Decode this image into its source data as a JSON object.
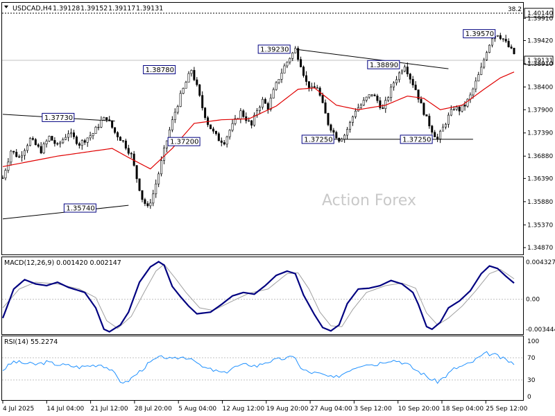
{
  "chart_data": {
    "type": "candlestick",
    "symbol_header": "USDCAD,H4",
    "ohlc": {
      "open": "1.39128",
      "high": "1.39152",
      "low": "1.39117",
      "close": "1.39131"
    },
    "current_price_label": "1.39131",
    "watermark": "Action Forex",
    "fib_level": {
      "label": "38.2",
      "price_label": "1.40140",
      "value": 1.4014
    },
    "price_axis": {
      "ticks": [
        "1.39910",
        "1.39420",
        "1.38910",
        "1.38400",
        "1.37900",
        "1.37390",
        "1.36880",
        "1.36390",
        "1.35880",
        "1.35370",
        "1.34870"
      ],
      "ylim": [
        1.3472,
        1.4025
      ]
    },
    "time_axis": [
      "4 Jul 2025",
      "14 Jul 04:00",
      "21 Jul 12:00",
      "28 Jul 20:00",
      "5 Aug 04:00",
      "12 Aug 12:00",
      "19 Aug 20:00",
      "27 Aug 04:00",
      "3 Sep 12:00",
      "10 Sep 20:00",
      "18 Sep 04:00",
      "25 Sep 12:00"
    ],
    "close_path": [
      [
        0,
        1.364
      ],
      [
        3,
        1.37
      ],
      [
        6,
        1.3685
      ],
      [
        10,
        1.3725
      ],
      [
        14,
        1.37
      ],
      [
        17,
        1.373
      ],
      [
        20,
        1.371
      ],
      [
        24,
        1.374
      ],
      [
        28,
        1.3715
      ],
      [
        33,
        1.3738
      ],
      [
        36,
        1.3765
      ],
      [
        38,
        1.3773
      ],
      [
        41,
        1.374
      ],
      [
        44,
        1.372
      ],
      [
        47,
        1.369
      ],
      [
        49,
        1.364
      ],
      [
        51,
        1.3595
      ],
      [
        53,
        1.3574
      ],
      [
        55,
        1.3605
      ],
      [
        57,
        1.365
      ],
      [
        59,
        1.37
      ],
      [
        61,
        1.3745
      ],
      [
        63,
        1.3785
      ],
      [
        65,
        1.382
      ],
      [
        67,
        1.385
      ],
      [
        69,
        1.3878
      ],
      [
        71,
        1.384
      ],
      [
        73,
        1.3795
      ],
      [
        75,
        1.376
      ],
      [
        77,
        1.374
      ],
      [
        79,
        1.3725
      ],
      [
        81,
        1.372
      ],
      [
        83,
        1.3745
      ],
      [
        85,
        1.3765
      ],
      [
        87,
        1.3785
      ],
      [
        89,
        1.377
      ],
      [
        91,
        1.3755
      ],
      [
        93,
        1.379
      ],
      [
        95,
        1.381
      ],
      [
        97,
        1.3795
      ],
      [
        99,
        1.383
      ],
      [
        101,
        1.386
      ],
      [
        103,
        1.3885
      ],
      [
        105,
        1.3905
      ],
      [
        107,
        1.3923
      ],
      [
        109,
        1.389
      ],
      [
        111,
        1.385
      ],
      [
        113,
        1.3835
      ],
      [
        115,
        1.384
      ],
      [
        117,
        1.38
      ],
      [
        119,
        1.376
      ],
      [
        121,
        1.374
      ],
      [
        123,
        1.3725
      ],
      [
        125,
        1.3735
      ],
      [
        127,
        1.376
      ],
      [
        129,
        1.379
      ],
      [
        131,
        1.38
      ],
      [
        133,
        1.3815
      ],
      [
        135,
        1.3825
      ],
      [
        137,
        1.381
      ],
      [
        139,
        1.379
      ],
      [
        141,
        1.382
      ],
      [
        143,
        1.385
      ],
      [
        145,
        1.387
      ],
      [
        147,
        1.3889
      ],
      [
        149,
        1.386
      ],
      [
        151,
        1.3835
      ],
      [
        153,
        1.38
      ],
      [
        155,
        1.377
      ],
      [
        157,
        1.3745
      ],
      [
        159,
        1.3725
      ],
      [
        161,
        1.375
      ],
      [
        163,
        1.3775
      ],
      [
        165,
        1.3795
      ],
      [
        167,
        1.379
      ],
      [
        169,
        1.38
      ],
      [
        171,
        1.382
      ],
      [
        173,
        1.385
      ],
      [
        175,
        1.388
      ],
      [
        177,
        1.392
      ],
      [
        179,
        1.395
      ],
      [
        181,
        1.3957
      ],
      [
        183,
        1.3945
      ],
      [
        185,
        1.3928
      ],
      [
        187,
        1.3913
      ]
    ],
    "moving_average": {
      "color": "#e00000",
      "points": [
        [
          0,
          1.3665
        ],
        [
          20,
          1.3688
        ],
        [
          40,
          1.3705
        ],
        [
          46,
          1.3685
        ],
        [
          54,
          1.366
        ],
        [
          62,
          1.3705
        ],
        [
          70,
          1.376
        ],
        [
          80,
          1.3768
        ],
        [
          90,
          1.377
        ],
        [
          100,
          1.3798
        ],
        [
          108,
          1.3835
        ],
        [
          114,
          1.3838
        ],
        [
          122,
          1.38
        ],
        [
          130,
          1.379
        ],
        [
          140,
          1.38
        ],
        [
          148,
          1.382
        ],
        [
          154,
          1.3815
        ],
        [
          160,
          1.379
        ],
        [
          168,
          1.38
        ],
        [
          176,
          1.3835
        ],
        [
          182,
          1.386
        ],
        [
          187,
          1.3873
        ]
      ]
    },
    "annotations": [
      {
        "label": "1.37730",
        "bar": 20,
        "price": 1.3773
      },
      {
        "label": "1.35740",
        "bar": 28,
        "price": 1.3574
      },
      {
        "label": "1.38780",
        "bar": 57,
        "price": 1.3878
      },
      {
        "label": "1.37200",
        "bar": 66,
        "price": 1.372
      },
      {
        "label": "1.39230",
        "bar": 99,
        "price": 1.3923
      },
      {
        "label": "1.37250",
        "bar": 115,
        "price": 1.3725
      },
      {
        "label": "1.38890",
        "bar": 139,
        "price": 1.3889
      },
      {
        "label": "1.37250",
        "bar": 151,
        "price": 1.3725
      },
      {
        "label": "1.39570",
        "bar": 174,
        "price": 1.3957
      }
    ],
    "trendlines": [
      {
        "from": [
          0,
          1.378
        ],
        "to": [
          41,
          1.3765
        ]
      },
      {
        "from": [
          0,
          1.355
        ],
        "to": [
          46,
          1.358
        ]
      },
      {
        "from": [
          107,
          1.3923
        ],
        "to": [
          163,
          1.388
        ]
      },
      {
        "from": [
          121,
          1.3725
        ],
        "to": [
          172,
          1.3725
        ]
      }
    ],
    "macd": {
      "label": "MACD(12,26,9) 0.001420 0.002147",
      "axis_labels": [
        "0.004327",
        "0.00",
        "-0.003444"
      ],
      "ylim": [
        -0.00392,
        0.00468
      ],
      "main": [
        [
          0,
          -0.0022
        ],
        [
          4,
          0.0012
        ],
        [
          8,
          0.0023
        ],
        [
          12,
          0.0018
        ],
        [
          16,
          0.0016
        ],
        [
          20,
          0.002
        ],
        [
          24,
          0.0014
        ],
        [
          30,
          0.0008
        ],
        [
          34,
          -0.001
        ],
        [
          37,
          -0.0035
        ],
        [
          39,
          -0.0038
        ],
        [
          43,
          -0.003
        ],
        [
          46,
          -0.0015
        ],
        [
          50,
          0.002
        ],
        [
          54,
          0.0038
        ],
        [
          57,
          0.0044
        ],
        [
          59,
          0.004
        ],
        [
          62,
          0.0015
        ],
        [
          65,
          0.0003
        ],
        [
          68,
          -0.0008
        ],
        [
          71,
          -0.0017
        ],
        [
          76,
          -0.0015
        ],
        [
          80,
          -0.0006
        ],
        [
          84,
          0.0004
        ],
        [
          88,
          0.0008
        ],
        [
          92,
          0.0006
        ],
        [
          96,
          0.0016
        ],
        [
          100,
          0.0028
        ],
        [
          104,
          0.0033
        ],
        [
          107,
          0.003
        ],
        [
          110,
          0.0005
        ],
        [
          114,
          -0.0018
        ],
        [
          117,
          -0.0033
        ],
        [
          120,
          -0.0037
        ],
        [
          123,
          -0.003
        ],
        [
          126,
          -0.0005
        ],
        [
          130,
          0.0012
        ],
        [
          134,
          0.0013
        ],
        [
          138,
          0.0016
        ],
        [
          142,
          0.0022
        ],
        [
          146,
          0.0018
        ],
        [
          150,
          0.0008
        ],
        [
          152,
          -0.0006
        ],
        [
          155,
          -0.0032
        ],
        [
          157,
          -0.0035
        ],
        [
          160,
          -0.0027
        ],
        [
          163,
          -0.001
        ],
        [
          167,
          -0.0002
        ],
        [
          171,
          0.001
        ],
        [
          175,
          0.003
        ],
        [
          178,
          0.0039
        ],
        [
          181,
          0.0036
        ],
        [
          184,
          0.0027
        ],
        [
          187,
          0.0019
        ]
      ],
      "signal": [
        [
          0,
          -0.001
        ],
        [
          6,
          0.0012
        ],
        [
          12,
          0.002
        ],
        [
          20,
          0.0018
        ],
        [
          28,
          0.0012
        ],
        [
          34,
          0.0002
        ],
        [
          38,
          -0.0025
        ],
        [
          42,
          -0.0034
        ],
        [
          47,
          -0.002
        ],
        [
          52,
          0.001
        ],
        [
          56,
          0.0033
        ],
        [
          59,
          0.0041
        ],
        [
          63,
          0.0025
        ],
        [
          67,
          0.0008
        ],
        [
          72,
          -0.001
        ],
        [
          77,
          -0.0013
        ],
        [
          84,
          -0.0002
        ],
        [
          90,
          0.0007
        ],
        [
          97,
          0.0012
        ],
        [
          104,
          0.003
        ],
        [
          108,
          0.0031
        ],
        [
          112,
          0.0012
        ],
        [
          116,
          -0.0015
        ],
        [
          120,
          -0.0031
        ],
        [
          124,
          -0.0032
        ],
        [
          128,
          -0.0012
        ],
        [
          133,
          0.0008
        ],
        [
          140,
          0.0016
        ],
        [
          146,
          0.0019
        ],
        [
          151,
          0.0013
        ],
        [
          155,
          -0.0016
        ],
        [
          159,
          -0.003
        ],
        [
          163,
          -0.0022
        ],
        [
          168,
          -0.0008
        ],
        [
          173,
          0.001
        ],
        [
          178,
          0.003
        ],
        [
          182,
          0.0035
        ],
        [
          187,
          0.0024
        ]
      ]
    },
    "rsi": {
      "label": "RSI(14) 55.2274",
      "axis_labels": [
        "100",
        "70",
        "30",
        "0"
      ],
      "levels": [
        70,
        30
      ],
      "ylim": [
        0,
        100
      ],
      "values": [
        [
          0,
          48
        ],
        [
          4,
          63
        ],
        [
          8,
          60
        ],
        [
          12,
          58
        ],
        [
          16,
          62
        ],
        [
          20,
          58
        ],
        [
          24,
          56
        ],
        [
          28,
          53
        ],
        [
          32,
          56
        ],
        [
          36,
          58
        ],
        [
          39,
          50
        ],
        [
          41,
          40
        ],
        [
          43,
          28
        ],
        [
          45,
          25
        ],
        [
          47,
          33
        ],
        [
          50,
          45
        ],
        [
          53,
          58
        ],
        [
          56,
          68
        ],
        [
          59,
          72
        ],
        [
          62,
          66
        ],
        [
          64,
          70
        ],
        [
          66,
          71
        ],
        [
          68,
          70
        ],
        [
          70,
          68
        ],
        [
          72,
          55
        ],
        [
          75,
          50
        ],
        [
          78,
          46
        ],
        [
          81,
          42
        ],
        [
          84,
          52
        ],
        [
          87,
          56
        ],
        [
          90,
          58
        ],
        [
          93,
          55
        ],
        [
          96,
          62
        ],
        [
          99,
          65
        ],
        [
          102,
          68
        ],
        [
          105,
          70
        ],
        [
          107,
          72
        ],
        [
          109,
          50
        ],
        [
          112,
          44
        ],
        [
          115,
          42
        ],
        [
          118,
          38
        ],
        [
          121,
          33
        ],
        [
          124,
          40
        ],
        [
          127,
          49
        ],
        [
          130,
          55
        ],
        [
          133,
          60
        ],
        [
          136,
          57
        ],
        [
          139,
          63
        ],
        [
          142,
          66
        ],
        [
          145,
          64
        ],
        [
          148,
          58
        ],
        [
          151,
          48
        ],
        [
          154,
          40
        ],
        [
          157,
          30
        ],
        [
          159,
          27
        ],
        [
          162,
          37
        ],
        [
          165,
          50
        ],
        [
          168,
          55
        ],
        [
          171,
          60
        ],
        [
          174,
          70
        ],
        [
          177,
          78
        ],
        [
          180,
          75
        ],
        [
          183,
          68
        ],
        [
          186,
          62
        ],
        [
          187,
          55
        ]
      ]
    },
    "colors": {
      "candles": "#000000",
      "macd_main": "#000080",
      "macd_signal": "#a0a0a0",
      "rsi": "#1e90ff",
      "grid": "#c0c0c0"
    }
  }
}
